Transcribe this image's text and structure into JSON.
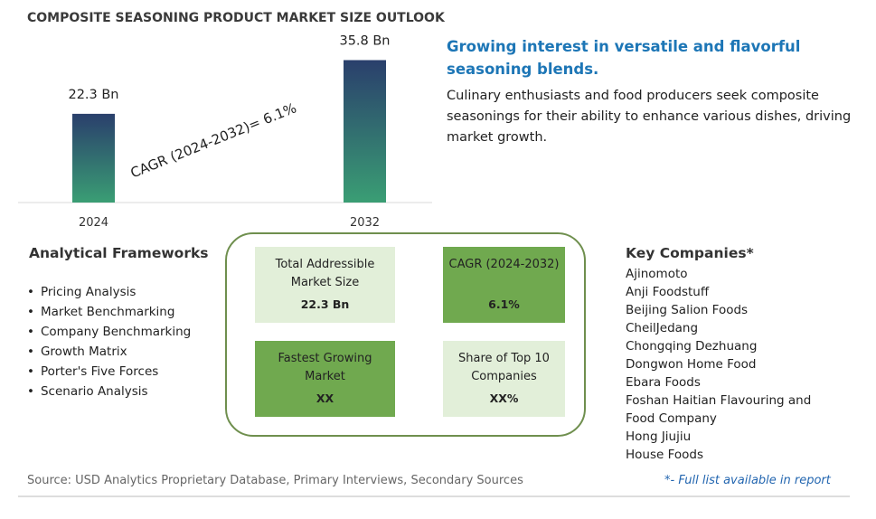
{
  "title": "COMPOSITE SEASONING PRODUCT MARKET SIZE OUTLOOK",
  "chart_data": {
    "type": "bar",
    "categories": [
      "2024",
      "2032"
    ],
    "values": [
      22.3,
      35.8
    ],
    "value_labels": [
      "22.3 Bn",
      "35.8 Bn"
    ],
    "annotation": "CAGR (2024-2032)=  6.1%",
    "colors": [
      "#3a9e74",
      "#2a3f6c"
    ]
  },
  "highlight": {
    "heading": "Growing interest in versatile and flavorful seasoning blends.",
    "body": "Culinary enthusiasts and food producers seek composite seasonings for their ability to enhance various dishes, driving market growth."
  },
  "frameworks": {
    "title": "Analytical Frameworks",
    "items": [
      "Pricing Analysis",
      "Market Benchmarking",
      "Company Benchmarking",
      "Growth Matrix",
      "Porter's Five Forces",
      "Scenario Analysis"
    ]
  },
  "summary": [
    {
      "label": "Total Addressible Market Size",
      "value": "22.3 Bn"
    },
    {
      "label": "CAGR (2024-2032)",
      "value": "6.1%"
    },
    {
      "label": "Fastest Growing Market",
      "value": "XX"
    },
    {
      "label": "Share of Top 10 Companies",
      "value": "XX%"
    }
  ],
  "companies": {
    "title": "Key Companies*",
    "items": [
      "Ajinomoto",
      "Anji Foodstuff",
      "Beijing Salion Foods",
      "CheilJedang",
      "Chongqing Dezhuang",
      "Dongwon Home Food",
      "Ebara Foods",
      "Foshan Haitian Flavouring and Food Company",
      "Hong Jiujiu",
      "House Foods"
    ]
  },
  "source": "Source: USD Analytics Proprietary Database, Primary Interviews, Secondary Sources",
  "footnote": "*- Full list available in report"
}
